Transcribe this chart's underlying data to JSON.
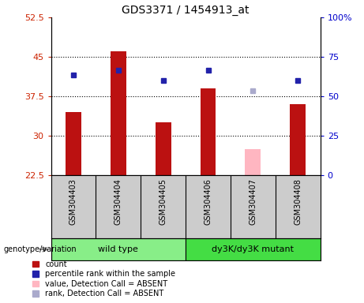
{
  "title": "GDS3371 / 1454913_at",
  "samples": [
    "GSM304403",
    "GSM304404",
    "GSM304405",
    "GSM304406",
    "GSM304407",
    "GSM304408"
  ],
  "group_labels": [
    "wild type",
    "dy3K/dy3K mutant"
  ],
  "bar_values": [
    34.5,
    46.0,
    32.5,
    39.0,
    null,
    36.0
  ],
  "bar_color": "#BB1111",
  "absent_bar_values": [
    null,
    null,
    null,
    null,
    27.5,
    null
  ],
  "absent_bar_color": "#FFB6C1",
  "rank_values": [
    41.5,
    42.5,
    40.5,
    42.5,
    null,
    40.5
  ],
  "rank_color": "#2222AA",
  "absent_rank_values": [
    null,
    null,
    null,
    null,
    38.5,
    null
  ],
  "absent_rank_color": "#AAAACC",
  "ylim_left": [
    22.5,
    52.5
  ],
  "ylim_right": [
    0,
    100
  ],
  "left_tick_color": "#CC2200",
  "right_tick_color": "#0000CC",
  "yticks_left": [
    22.5,
    30.0,
    37.5,
    45.0,
    52.5
  ],
  "yticks_left_labels": [
    "22.5",
    "30",
    "37.5",
    "45",
    "52.5"
  ],
  "yticks_right": [
    0,
    25,
    50,
    75,
    100
  ],
  "yticks_right_labels": [
    "0",
    "25",
    "50",
    "75",
    "100%"
  ],
  "bar_width": 0.35,
  "marker_size": 5,
  "background_sample": "#CCCCCC",
  "background_wildtype": "#88EE88",
  "background_mutant": "#44DD44",
  "genotype_label": "genotype/variation",
  "legend_items": [
    {
      "label": "count",
      "color": "#BB1111"
    },
    {
      "label": "percentile rank within the sample",
      "color": "#2222AA"
    },
    {
      "label": "value, Detection Call = ABSENT",
      "color": "#FFB6C1"
    },
    {
      "label": "rank, Detection Call = ABSENT",
      "color": "#AAAACC"
    }
  ]
}
